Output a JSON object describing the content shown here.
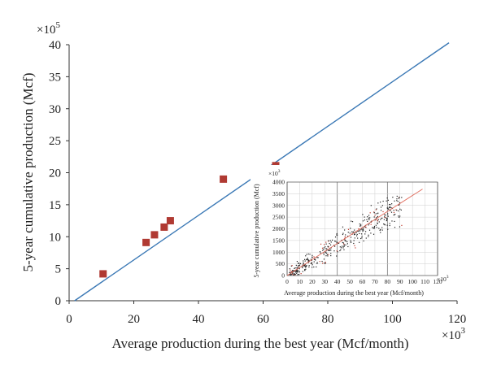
{
  "chart_data": [
    {
      "type": "scatter",
      "xlabel": "Average production during the best year (Mcf/month)",
      "ylabel": "5-year cumulative production (Mcf)",
      "x_multiplier": "×10",
      "x_multiplier_exp": "3",
      "y_multiplier": "×10",
      "y_multiplier_exp": "5",
      "xlim": [
        0,
        120
      ],
      "ylim": [
        0,
        40
      ],
      "x_ticks": [
        0,
        20,
        40,
        60,
        80,
        100,
        120
      ],
      "y_ticks": [
        0,
        5,
        10,
        15,
        20,
        25,
        30,
        35,
        40
      ],
      "grid": false,
      "points": [
        {
          "x": 10.5,
          "y": 4.2
        },
        {
          "x": 23.8,
          "y": 9.1
        },
        {
          "x": 26.4,
          "y": 10.3
        },
        {
          "x": 29.4,
          "y": 11.5
        },
        {
          "x": 31.3,
          "y": 12.5
        },
        {
          "x": 47.7,
          "y": 19.0
        },
        {
          "x": 63.9,
          "y": 21.1
        }
      ],
      "fit_line": {
        "x": [
          1.7,
          117.5
        ],
        "y": [
          0,
          40.3
        ]
      },
      "colors": {
        "points": "#b03a33",
        "line": "#3a78b5"
      }
    },
    {
      "type": "scatter",
      "position": "inset lower-right",
      "xlabel": "Average production during the best year (Mcf/month)",
      "ylabel": "5-year cumulative production (Mcf)",
      "x_multiplier": "×10",
      "x_multiplier_exp": "3",
      "y_multiplier": "×10",
      "y_multiplier_exp": "3",
      "xlim": [
        0,
        120
      ],
      "ylim": [
        0,
        4000
      ],
      "x_ticks": [
        0,
        10,
        20,
        30,
        40,
        50,
        60,
        70,
        80,
        90,
        100,
        110,
        120
      ],
      "y_ticks": [
        0,
        500,
        1000,
        1500,
        2000,
        2500,
        3000,
        3500,
        4000
      ],
      "grid": true,
      "points_description": "dense cloud of several hundred small dark points along a rising trend",
      "cloud": {
        "x_range": [
          2,
          92
        ],
        "trend_slope": 33,
        "spread": 380
      },
      "fit_line": {
        "x": [
          0,
          108
        ],
        "y": [
          0,
          3700
        ]
      },
      "colors": {
        "points": "#222222",
        "line": "#e06a5a"
      }
    }
  ]
}
